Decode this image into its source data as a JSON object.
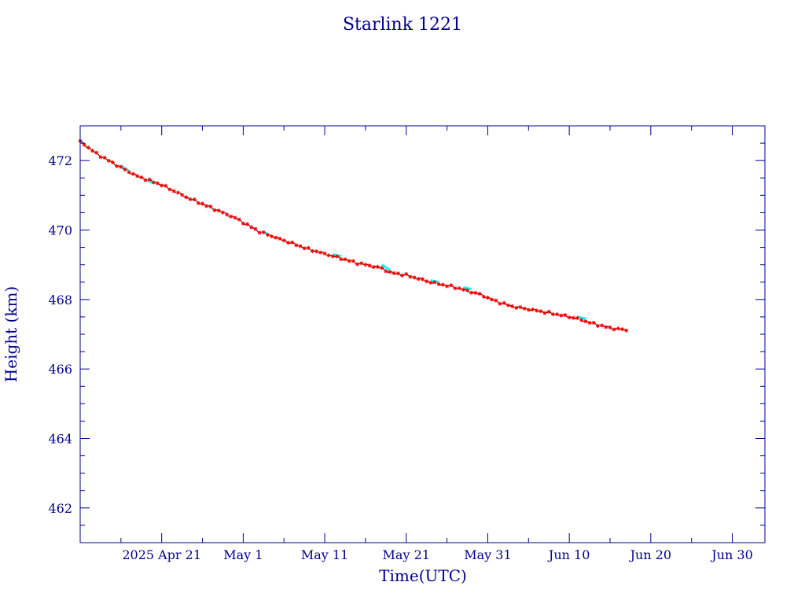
{
  "chart_data": {
    "type": "line",
    "title": "Starlink 1221",
    "xlabel": "Time(UTC)",
    "ylabel": "Height (km)",
    "x_range": [
      "2025-04-11",
      "2025-07-04"
    ],
    "ylim": [
      461.0,
      473.0
    ],
    "x_ticks": [
      {
        "date": "2025-04-21",
        "label": "2025 Apr 21"
      },
      {
        "date": "2025-05-01",
        "label": "May  1"
      },
      {
        "date": "2025-05-11",
        "label": "May 11"
      },
      {
        "date": "2025-05-21",
        "label": "May 21"
      },
      {
        "date": "2025-05-31",
        "label": "May 31"
      },
      {
        "date": "2025-06-10",
        "label": "Jun 10"
      },
      {
        "date": "2025-06-20",
        "label": "Jun 20"
      },
      {
        "date": "2025-06-30",
        "label": "Jun 30"
      }
    ],
    "y_ticks": [
      {
        "value": 462,
        "label": "462"
      },
      {
        "value": 464,
        "label": "464"
      },
      {
        "value": 466,
        "label": "466"
      },
      {
        "value": 468,
        "label": "468"
      },
      {
        "value": 470,
        "label": "470"
      },
      {
        "value": 472,
        "label": "472"
      }
    ],
    "grid": false,
    "colors": {
      "axes": "#00008b",
      "line": "#000000",
      "markers": "#ff0000",
      "highlight": "#00ffff"
    },
    "series": [
      {
        "marker": "asterisk",
        "x": [
          "2025-04-11",
          "2025-04-13",
          "2025-04-16",
          "2025-04-18",
          "2025-04-21",
          "2025-04-24",
          "2025-04-27",
          "2025-04-30",
          "2025-05-03",
          "2025-05-06",
          "2025-05-09",
          "2025-05-12",
          "2025-05-15",
          "2025-05-18",
          "2025-05-19",
          "2025-05-21",
          "2025-05-24",
          "2025-05-27",
          "2025-05-30",
          "2025-06-01",
          "2025-06-03",
          "2025-06-06",
          "2025-06-09",
          "2025-06-11",
          "2025-06-13",
          "2025-06-15",
          "2025-06-17"
        ],
        "y": [
          472.55,
          472.2,
          471.8,
          471.55,
          471.3,
          470.95,
          470.65,
          470.35,
          469.95,
          469.7,
          469.45,
          469.25,
          469.05,
          468.9,
          468.78,
          468.7,
          468.5,
          468.35,
          468.15,
          467.95,
          467.8,
          467.68,
          467.55,
          467.45,
          467.3,
          467.18,
          467.12
        ]
      }
    ],
    "highlight_segments": [
      {
        "x": [
          "2025-04-16",
          "2025-04-17"
        ],
        "y": [
          471.85,
          471.7
        ]
      },
      {
        "x": [
          "2025-04-19",
          "2025-04-20"
        ],
        "y": [
          471.45,
          471.35
        ]
      },
      {
        "x": [
          "2025-05-03",
          "2025-05-04"
        ],
        "y": [
          469.95,
          469.9
        ]
      },
      {
        "x": [
          "2025-05-12",
          "2025-05-13"
        ],
        "y": [
          469.3,
          469.25
        ]
      },
      {
        "x": [
          "2025-05-18",
          "2025-05-19"
        ],
        "y": [
          469.0,
          468.85
        ]
      },
      {
        "x": [
          "2025-05-24",
          "2025-05-25"
        ],
        "y": [
          468.55,
          468.5
        ]
      },
      {
        "x": [
          "2025-05-28",
          "2025-05-29"
        ],
        "y": [
          468.35,
          468.3
        ]
      },
      {
        "x": [
          "2025-06-11",
          "2025-06-12"
        ],
        "y": [
          467.5,
          467.45
        ]
      }
    ]
  }
}
